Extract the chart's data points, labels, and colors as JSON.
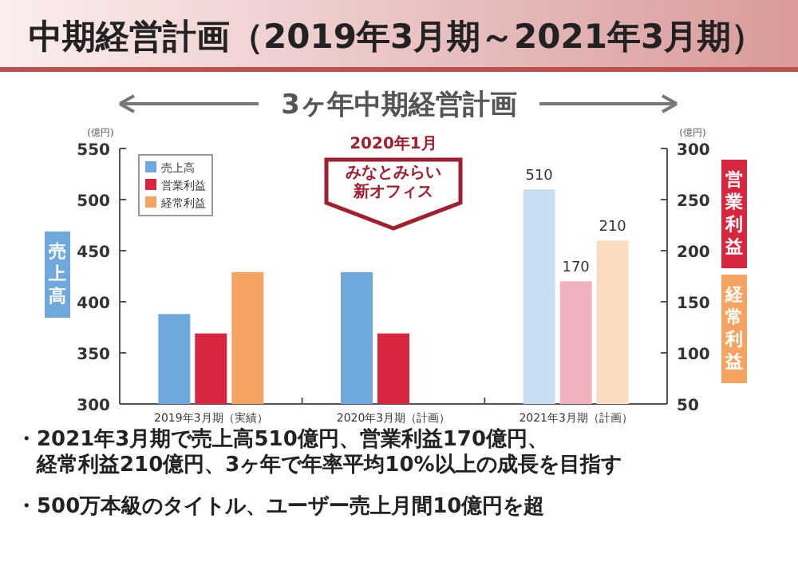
{
  "chart_data": {
    "type": "bar",
    "title": "中期経営計画（2019年3月期～2021年3月期）",
    "subtitle": "3ヶ年中期経営計画",
    "categories": [
      "2019年3月期（実績）",
      "2020年3月期（計画）",
      "2021年3月期（計画）"
    ],
    "ylabel": "(億円)",
    "y2label": "(億円)",
    "ylim": [
      300,
      550
    ],
    "yticks": [
      300,
      350,
      400,
      450,
      500,
      550
    ],
    "y2lim": [
      50,
      300
    ],
    "y2ticks": [
      50,
      100,
      150,
      200,
      250,
      300
    ],
    "legend": "top left",
    "series": [
      {
        "name": "売上高",
        "color": "#6fa8dc",
        "colors": [
          "#6fa8dc",
          "#6fa8dc",
          "#c9def2"
        ],
        "values": [
          388,
          429,
          510
        ],
        "value_labels": [
          null,
          null,
          "510"
        ]
      },
      {
        "name": "営業利益",
        "color": "#d7263d",
        "colors": [
          "#d7263d",
          "#d7263d",
          "#f0b3bd"
        ],
        "values": [
          119,
          119,
          170
        ],
        "value_labels": [
          null,
          null,
          "170"
        ],
        "axis": "y2"
      },
      {
        "name": "経常利益",
        "color": "#f4a460",
        "colors": [
          "#f4a460",
          null,
          "#fbdcc0"
        ],
        "values": [
          179,
          null,
          210
        ],
        "value_labels": [
          null,
          null,
          "210"
        ],
        "axis": "y2"
      }
    ],
    "annotations": [
      "2020年1月",
      "みなとみらい新オフィス",
      "・2021年3月期で売上高510億円、営業利益170億円、経常利益210億円、3ヶ年で年率平均10%以上の成長を目指す",
      "・500万本級のタイトル、ユーザー売上月間10億円を超"
    ]
  }
}
